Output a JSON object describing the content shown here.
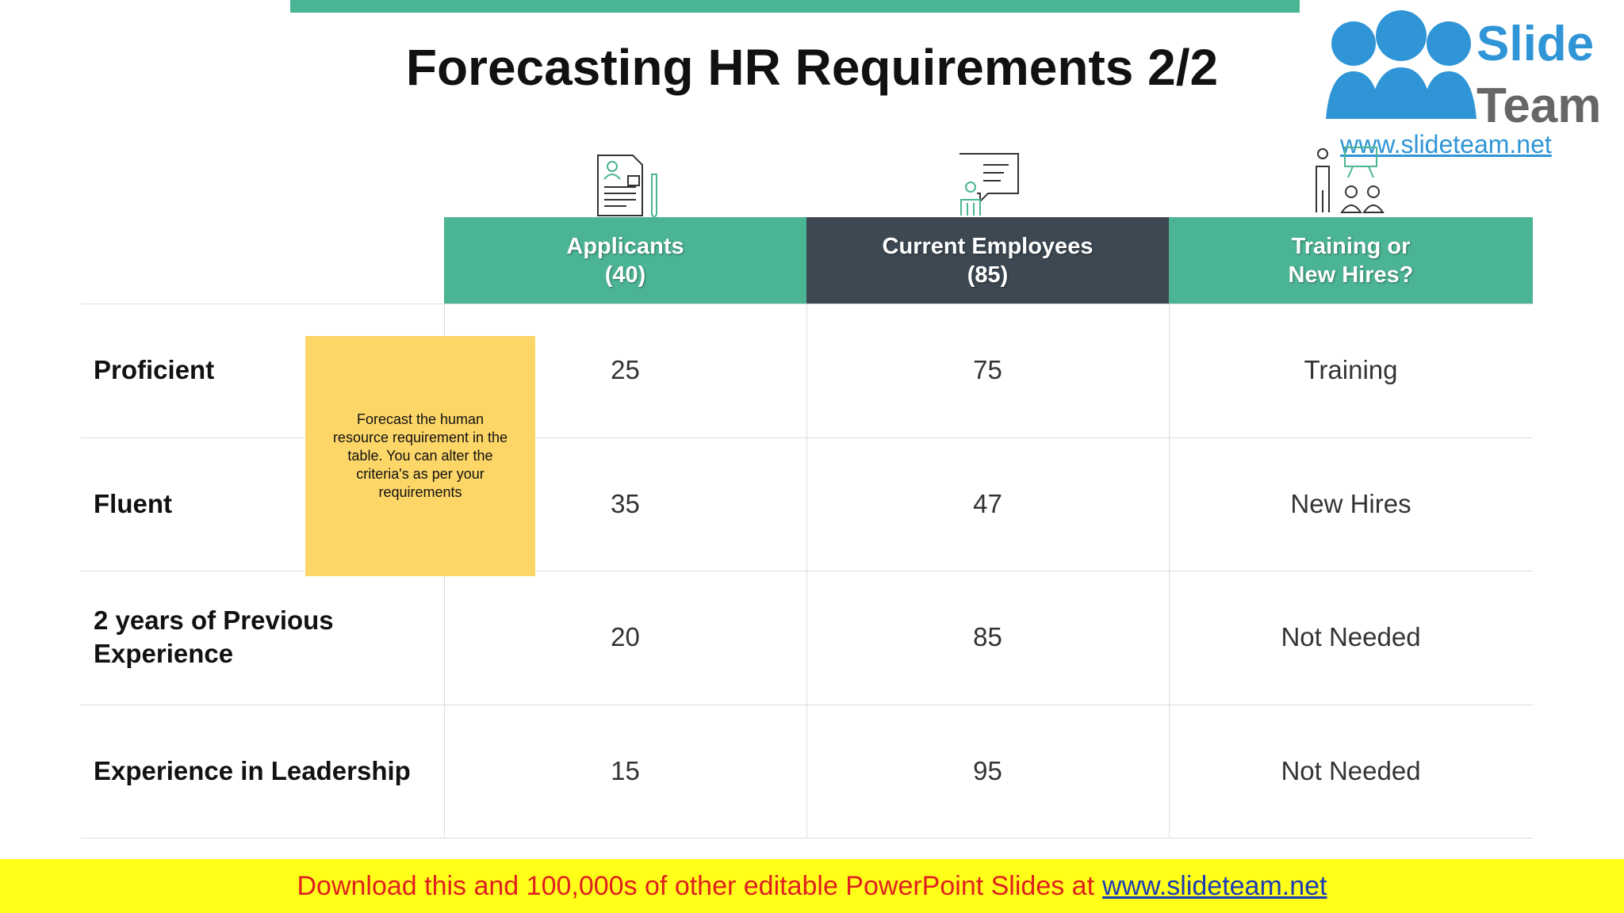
{
  "header": {
    "title": "Forecasting HR Requirements 2/2"
  },
  "logo": {
    "line1": "Slide",
    "line2": "Team",
    "url": "www.slideteam.net"
  },
  "table": {
    "columns": [
      [
        "Applicants",
        "(40)"
      ],
      [
        "Current Employees",
        "(85)"
      ],
      [
        "Training or",
        "New Hires?"
      ]
    ],
    "rows": [
      {
        "label": "Proficient",
        "cells": [
          25,
          75,
          "Training"
        ]
      },
      {
        "label": "Fluent",
        "cells": [
          35,
          47,
          "New Hires"
        ]
      },
      {
        "label": "2 years of Previous Experience",
        "cells": [
          20,
          85,
          "Not Needed"
        ]
      },
      {
        "label": "Experience in Leadership",
        "cells": [
          15,
          95,
          "Not Needed"
        ]
      }
    ]
  },
  "note": {
    "text": "Forecast the human resource requirement in the table. You can alter the criteria's as per your requirements"
  },
  "footer": {
    "text": "Download this and 100,000s of other editable PowerPoint Slides at",
    "link": "www.slideteam.net"
  }
}
